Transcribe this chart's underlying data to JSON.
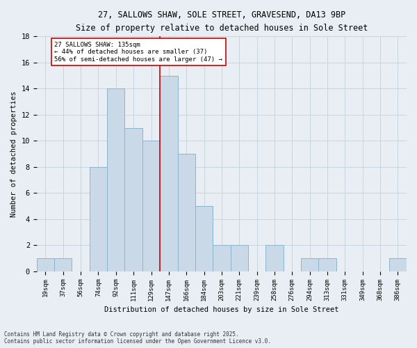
{
  "title_line1": "27, SALLOWS SHAW, SOLE STREET, GRAVESEND, DA13 9BP",
  "title_line2": "Size of property relative to detached houses in Sole Street",
  "xlabel": "Distribution of detached houses by size in Sole Street",
  "ylabel": "Number of detached properties",
  "bar_labels": [
    "19sqm",
    "37sqm",
    "56sqm",
    "74sqm",
    "92sqm",
    "111sqm",
    "129sqm",
    "147sqm",
    "166sqm",
    "184sqm",
    "203sqm",
    "221sqm",
    "239sqm",
    "258sqm",
    "276sqm",
    "294sqm",
    "313sqm",
    "331sqm",
    "349sqm",
    "368sqm",
    "386sqm"
  ],
  "bar_values": [
    1,
    1,
    0,
    8,
    14,
    11,
    10,
    15,
    9,
    5,
    2,
    2,
    0,
    2,
    0,
    1,
    1,
    0,
    0,
    0,
    1
  ],
  "bar_color": "#c9d9e8",
  "bar_edgecolor": "#8ab4d0",
  "vline_x": 6.5,
  "vline_color": "#cc0000",
  "annotation_text": "27 SALLOWS SHAW: 135sqm\n← 44% of detached houses are smaller (37)\n56% of semi-detached houses are larger (47) →",
  "annotation_box_color": "#ffffff",
  "annotation_box_edgecolor": "#cc0000",
  "ylim": [
    0,
    18
  ],
  "yticks": [
    0,
    2,
    4,
    6,
    8,
    10,
    12,
    14,
    16,
    18
  ],
  "footnote": "Contains HM Land Registry data © Crown copyright and database right 2025.\nContains public sector information licensed under the Open Government Licence v3.0.",
  "bg_color": "#e8eef4",
  "grid_color": "#c8d4de"
}
